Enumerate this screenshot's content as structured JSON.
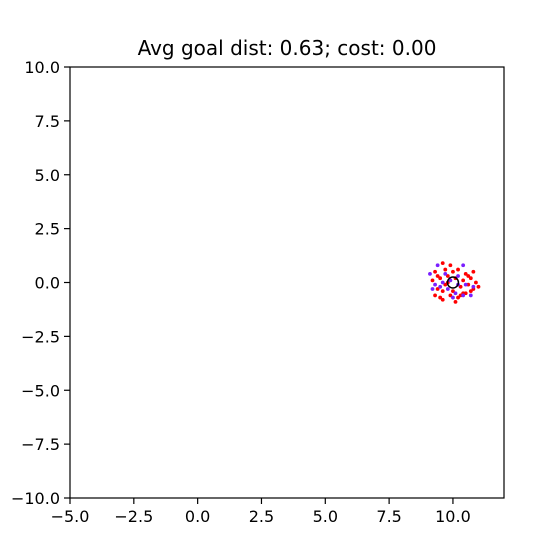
{
  "chart_data": {
    "type": "scatter",
    "title": "Avg goal dist: 0.63; cost: 0.00",
    "xlabel": "",
    "ylabel": "",
    "xlim": [
      -5,
      12
    ],
    "ylim": [
      -10,
      10
    ],
    "xticks": [
      -5.0,
      -2.5,
      0.0,
      2.5,
      5.0,
      7.5,
      10.0
    ],
    "yticks": [
      -10.0,
      -7.5,
      -5.0,
      -2.5,
      0.0,
      2.5,
      5.0,
      7.5,
      10.0
    ],
    "xtick_labels": [
      "−5.0",
      "−2.5",
      "0.0",
      "2.5",
      "5.0",
      "7.5",
      "10.0"
    ],
    "ytick_labels": [
      "−10.0",
      "−7.5",
      "−5.0",
      "−2.5",
      "0.0",
      "2.5",
      "5.0",
      "7.5",
      "10.0"
    ],
    "grid": false,
    "goal": {
      "x": 10.0,
      "y": 0.0,
      "marker": "open-circle",
      "color": "#000000"
    },
    "series": [
      {
        "color": "#ff0000",
        "points": [
          [
            9.3,
            0.5
          ],
          [
            9.6,
            0.9
          ],
          [
            9.9,
            0.8
          ],
          [
            10.2,
            0.6
          ],
          [
            10.5,
            0.4
          ],
          [
            10.8,
            0.5
          ],
          [
            9.2,
            0.1
          ],
          [
            9.5,
            0.2
          ],
          [
            9.8,
            0.3
          ],
          [
            10.1,
            0.2
          ],
          [
            10.4,
            0.1
          ],
          [
            10.7,
            0.2
          ],
          [
            11.0,
            -0.2
          ],
          [
            9.4,
            -0.3
          ],
          [
            9.7,
            -0.1
          ],
          [
            10.0,
            -0.4
          ],
          [
            10.3,
            -0.2
          ],
          [
            10.6,
            -0.1
          ],
          [
            9.3,
            -0.6
          ],
          [
            9.6,
            -0.8
          ],
          [
            9.9,
            -0.6
          ],
          [
            10.2,
            -0.7
          ],
          [
            10.5,
            -0.5
          ],
          [
            10.8,
            -0.3
          ],
          [
            9.5,
            -0.7
          ],
          [
            10.1,
            -0.9
          ],
          [
            10.4,
            -0.5
          ],
          [
            9.8,
            0.0
          ],
          [
            10.6,
            0.3
          ],
          [
            9.4,
            0.3
          ],
          [
            10.9,
            0.0
          ],
          [
            9.7,
            0.6
          ],
          [
            10.0,
            0.5
          ],
          [
            10.3,
            -0.6
          ],
          [
            9.6,
            -0.4
          ],
          [
            10.7,
            -0.4
          ]
        ]
      },
      {
        "color": "#7a1fff",
        "points": [
          [
            9.1,
            0.4
          ],
          [
            9.4,
            0.8
          ],
          [
            10.4,
            0.8
          ],
          [
            9.2,
            -0.3
          ],
          [
            9.5,
            -0.2
          ],
          [
            9.8,
            -0.3
          ],
          [
            10.1,
            -0.5
          ],
          [
            10.4,
            -0.6
          ],
          [
            10.7,
            -0.6
          ],
          [
            9.9,
            0.1
          ],
          [
            10.2,
            0.3
          ],
          [
            9.7,
            0.4
          ],
          [
            10.5,
            -0.1
          ],
          [
            9.6,
            0.0
          ],
          [
            10.0,
            -0.7
          ],
          [
            9.3,
            -0.1
          ],
          [
            10.8,
            -0.2
          ],
          [
            10.2,
            -0.1
          ]
        ]
      }
    ]
  }
}
